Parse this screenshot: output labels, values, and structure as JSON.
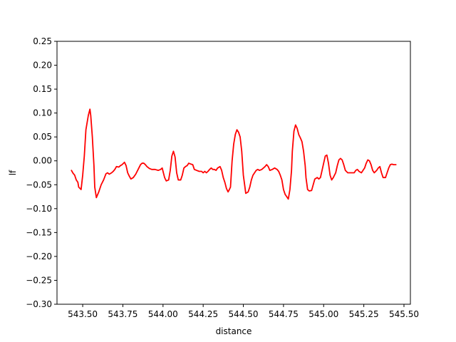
{
  "chart_data": {
    "type": "line",
    "title": "",
    "xlabel": "distance",
    "ylabel": "lf",
    "xlim": [
      543.34,
      545.54
    ],
    "ylim": [
      -0.3,
      0.25
    ],
    "grid": false,
    "x_ticks": [
      543.5,
      543.75,
      544.0,
      544.25,
      544.5,
      544.75,
      545.0,
      545.25,
      545.5
    ],
    "x_tick_labels": [
      "543.50",
      "543.75",
      "544.00",
      "544.25",
      "544.50",
      "544.75",
      "545.00",
      "545.25",
      "545.50"
    ],
    "y_ticks": [
      0.25,
      0.2,
      0.15,
      0.1,
      0.05,
      0.0,
      -0.05,
      -0.1,
      -0.15,
      -0.2,
      -0.25,
      -0.3
    ],
    "y_tick_labels": [
      "0.25",
      "0.20",
      "0.15",
      "0.10",
      "0.05",
      "0.00",
      "−0.05",
      "−0.10",
      "−0.15",
      "−0.20",
      "−0.25",
      "−0.30"
    ],
    "series": [
      {
        "color": "#ff0000",
        "points": [
          [
            543.43,
            -0.02
          ],
          [
            543.44,
            -0.026
          ],
          [
            543.45,
            -0.03
          ],
          [
            543.46,
            -0.04
          ],
          [
            543.47,
            -0.045
          ],
          [
            543.475,
            -0.055
          ],
          [
            543.49,
            -0.06
          ],
          [
            543.5,
            -0.03
          ],
          [
            543.51,
            0.01
          ],
          [
            543.52,
            0.065
          ],
          [
            543.535,
            0.095
          ],
          [
            543.545,
            0.108
          ],
          [
            543.55,
            0.095
          ],
          [
            543.56,
            0.05
          ],
          [
            543.57,
            -0.01
          ],
          [
            543.575,
            -0.055
          ],
          [
            543.585,
            -0.077
          ],
          [
            543.6,
            -0.065
          ],
          [
            543.615,
            -0.05
          ],
          [
            543.63,
            -0.04
          ],
          [
            543.645,
            -0.027
          ],
          [
            543.655,
            -0.025
          ],
          [
            543.665,
            -0.028
          ],
          [
            543.68,
            -0.025
          ],
          [
            543.69,
            -0.022
          ],
          [
            543.7,
            -0.018
          ],
          [
            543.71,
            -0.012
          ],
          [
            543.725,
            -0.013
          ],
          [
            543.735,
            -0.01
          ],
          [
            543.745,
            -0.008
          ],
          [
            543.76,
            -0.003
          ],
          [
            543.77,
            -0.01
          ],
          [
            543.78,
            -0.025
          ],
          [
            543.79,
            -0.032
          ],
          [
            543.8,
            -0.038
          ],
          [
            543.815,
            -0.035
          ],
          [
            543.83,
            -0.028
          ],
          [
            543.845,
            -0.018
          ],
          [
            543.86,
            -0.008
          ],
          [
            543.87,
            -0.005
          ],
          [
            543.88,
            -0.005
          ],
          [
            543.89,
            -0.008
          ],
          [
            543.9,
            -0.012
          ],
          [
            543.915,
            -0.016
          ],
          [
            543.93,
            -0.018
          ],
          [
            543.95,
            -0.018
          ],
          [
            543.97,
            -0.02
          ],
          [
            543.985,
            -0.018
          ],
          [
            543.995,
            -0.015
          ],
          [
            544.0,
            -0.022
          ],
          [
            544.01,
            -0.035
          ],
          [
            544.02,
            -0.042
          ],
          [
            544.035,
            -0.04
          ],
          [
            544.045,
            -0.02
          ],
          [
            544.055,
            0.01
          ],
          [
            544.065,
            0.02
          ],
          [
            544.075,
            0.008
          ],
          [
            544.085,
            -0.025
          ],
          [
            544.095,
            -0.04
          ],
          [
            544.11,
            -0.04
          ],
          [
            544.12,
            -0.03
          ],
          [
            544.13,
            -0.015
          ],
          [
            544.14,
            -0.012
          ],
          [
            544.15,
            -0.01
          ],
          [
            544.16,
            -0.005
          ],
          [
            544.175,
            -0.007
          ],
          [
            544.185,
            -0.008
          ],
          [
            544.195,
            -0.018
          ],
          [
            544.21,
            -0.02
          ],
          [
            544.225,
            -0.022
          ],
          [
            544.24,
            -0.022
          ],
          [
            544.25,
            -0.025
          ],
          [
            544.26,
            -0.022
          ],
          [
            544.27,
            -0.025
          ],
          [
            544.28,
            -0.022
          ],
          [
            544.29,
            -0.018
          ],
          [
            544.3,
            -0.015
          ],
          [
            544.31,
            -0.018
          ],
          [
            544.32,
            -0.018
          ],
          [
            544.33,
            -0.02
          ],
          [
            544.34,
            -0.015
          ],
          [
            544.355,
            -0.012
          ],
          [
            544.365,
            -0.02
          ],
          [
            544.375,
            -0.035
          ],
          [
            544.385,
            -0.045
          ],
          [
            544.395,
            -0.058
          ],
          [
            544.405,
            -0.065
          ],
          [
            544.41,
            -0.062
          ],
          [
            544.42,
            -0.055
          ],
          [
            544.43,
            0.0
          ],
          [
            544.44,
            0.035
          ],
          [
            544.45,
            0.055
          ],
          [
            544.46,
            0.065
          ],
          [
            544.47,
            0.06
          ],
          [
            544.48,
            0.05
          ],
          [
            544.49,
            0.02
          ],
          [
            544.5,
            -0.03
          ],
          [
            544.51,
            -0.055
          ],
          [
            544.515,
            -0.068
          ],
          [
            544.53,
            -0.065
          ],
          [
            544.54,
            -0.055
          ],
          [
            544.55,
            -0.04
          ],
          [
            544.56,
            -0.03
          ],
          [
            544.57,
            -0.025
          ],
          [
            544.58,
            -0.02
          ],
          [
            544.59,
            -0.018
          ],
          [
            544.6,
            -0.02
          ],
          [
            544.615,
            -0.018
          ],
          [
            544.625,
            -0.015
          ],
          [
            544.635,
            -0.012
          ],
          [
            544.645,
            -0.008
          ],
          [
            544.655,
            -0.012
          ],
          [
            544.665,
            -0.02
          ],
          [
            544.68,
            -0.018
          ],
          [
            544.695,
            -0.015
          ],
          [
            544.71,
            -0.018
          ],
          [
            544.72,
            -0.022
          ],
          [
            544.73,
            -0.03
          ],
          [
            544.74,
            -0.04
          ],
          [
            544.75,
            -0.06
          ],
          [
            544.76,
            -0.07
          ],
          [
            544.77,
            -0.075
          ],
          [
            544.78,
            -0.08
          ],
          [
            544.79,
            -0.06
          ],
          [
            544.8,
            -0.02
          ],
          [
            544.805,
            0.02
          ],
          [
            544.815,
            0.062
          ],
          [
            544.825,
            0.075
          ],
          [
            544.835,
            0.068
          ],
          [
            544.845,
            0.055
          ],
          [
            544.855,
            0.048
          ],
          [
            544.865,
            0.04
          ],
          [
            544.875,
            0.02
          ],
          [
            544.885,
            -0.01
          ],
          [
            544.89,
            -0.035
          ],
          [
            544.9,
            -0.06
          ],
          [
            544.91,
            -0.063
          ],
          [
            544.925,
            -0.062
          ],
          [
            544.935,
            -0.05
          ],
          [
            544.945,
            -0.038
          ],
          [
            544.96,
            -0.035
          ],
          [
            544.97,
            -0.038
          ],
          [
            544.98,
            -0.035
          ],
          [
            544.99,
            -0.02
          ],
          [
            545.0,
            -0.005
          ],
          [
            545.01,
            0.01
          ],
          [
            545.02,
            0.012
          ],
          [
            545.03,
            -0.005
          ],
          [
            545.04,
            -0.03
          ],
          [
            545.05,
            -0.04
          ],
          [
            545.06,
            -0.035
          ],
          [
            545.075,
            -0.025
          ],
          [
            545.085,
            -0.01
          ],
          [
            545.095,
            0.002
          ],
          [
            545.105,
            0.005
          ],
          [
            545.115,
            0.002
          ],
          [
            545.125,
            -0.008
          ],
          [
            545.135,
            -0.02
          ],
          [
            545.15,
            -0.025
          ],
          [
            545.165,
            -0.025
          ],
          [
            545.18,
            -0.025
          ],
          [
            545.19,
            -0.025
          ],
          [
            545.2,
            -0.02
          ],
          [
            545.21,
            -0.018
          ],
          [
            545.22,
            -0.022
          ],
          [
            545.235,
            -0.025
          ],
          [
            545.245,
            -0.02
          ],
          [
            545.255,
            -0.015
          ],
          [
            545.265,
            -0.005
          ],
          [
            545.275,
            0.002
          ],
          [
            545.285,
            0.0
          ],
          [
            545.295,
            -0.008
          ],
          [
            545.305,
            -0.02
          ],
          [
            545.315,
            -0.025
          ],
          [
            545.33,
            -0.02
          ],
          [
            545.34,
            -0.015
          ],
          [
            545.35,
            -0.012
          ],
          [
            545.36,
            -0.025
          ],
          [
            545.37,
            -0.035
          ],
          [
            545.385,
            -0.035
          ],
          [
            545.395,
            -0.025
          ],
          [
            545.405,
            -0.015
          ],
          [
            545.415,
            -0.008
          ],
          [
            545.425,
            -0.007
          ],
          [
            545.435,
            -0.008
          ],
          [
            545.45,
            -0.008
          ]
        ]
      }
    ]
  }
}
